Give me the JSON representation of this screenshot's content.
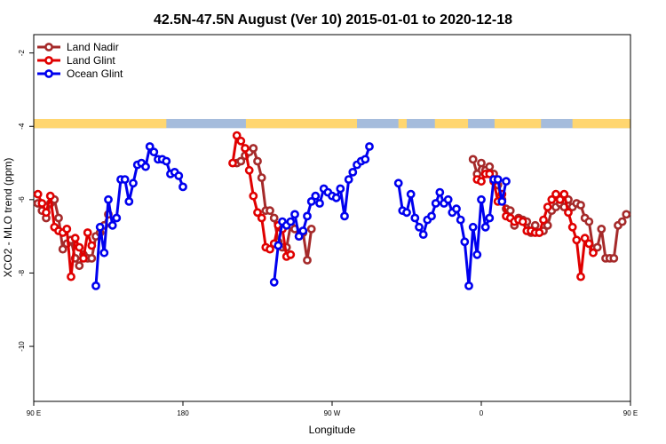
{
  "chart_data": {
    "type": "line",
    "title": "42.5N-47.5N August (Ver 10)   2015-01-01 to 2020-12-18",
    "xlabel": "Longitude",
    "ylabel": "XCO2 - MLO trend (ppm)",
    "xlim": [
      0,
      360
    ],
    "ylim": [
      -11.5,
      -1.5
    ],
    "x_ticks": [
      {
        "pos": 0,
        "label": "90 E"
      },
      {
        "pos": 90,
        "label": "180"
      },
      {
        "pos": 180,
        "label": "90 W"
      },
      {
        "pos": 270,
        "label": "0"
      },
      {
        "pos": 360,
        "label": "90 E"
      },
      {
        "pos": 450,
        "label": "180"
      }
    ],
    "y_ticks": [
      {
        "value": -2,
        "label": "-2"
      },
      {
        "value": -4,
        "label": "-4"
      },
      {
        "value": -6,
        "label": "-6"
      },
      {
        "value": -8,
        "label": "-8"
      },
      {
        "value": -10,
        "label": "-10"
      }
    ],
    "grid": false,
    "legend_position": "top-left",
    "land_mask_band": {
      "y_range": [
        -4.05,
        -3.8
      ],
      "land_color": "#ffd670",
      "ocean_color": "#a5bcdc",
      "land_segments": [
        [
          0,
          80
        ],
        [
          128,
          195
        ],
        [
          220,
          225
        ],
        [
          242,
          262
        ],
        [
          278,
          306
        ],
        [
          325,
          445
        ],
        [
          470,
          485
        ]
      ]
    },
    "series": [
      {
        "name": "Land Nadir",
        "color": "#a52a2a",
        "segments": [
          [
            [
              2.5,
              -6.1
            ],
            [
              5,
              -6.3
            ],
            [
              7.5,
              -6.5
            ],
            [
              10,
              -6.1
            ],
            [
              12.5,
              -6.0
            ],
            [
              15,
              -6.5
            ],
            [
              17.5,
              -7.35
            ],
            [
              20,
              -7.2
            ],
            [
              22.5,
              -7.1
            ],
            [
              25,
              -7.6
            ],
            [
              27.5,
              -7.8
            ],
            [
              30,
              -7.5
            ],
            [
              32.5,
              -7.6
            ],
            [
              35,
              -7.6
            ],
            [
              37.5,
              -7.0
            ],
            [
              40,
              -6.9
            ],
            [
              42.5,
              -6.7
            ],
            [
              45,
              -6.4
            ]
          ],
          [
            [
              122.5,
              -5.0
            ],
            [
              125,
              -4.95
            ],
            [
              127.5,
              -4.8
            ],
            [
              130,
              -4.7
            ],
            [
              132.5,
              -4.6
            ],
            [
              135,
              -4.95
            ],
            [
              137.5,
              -5.4
            ],
            [
              140,
              -6.3
            ],
            [
              142.5,
              -6.3
            ],
            [
              145,
              -6.5
            ],
            [
              147.5,
              -7.15
            ],
            [
              150,
              -7.3
            ],
            [
              152.5,
              -7.3
            ],
            [
              155,
              -6.7
            ],
            [
              157.5,
              -6.8
            ],
            [
              160,
              -7.0
            ],
            [
              162.5,
              -6.9
            ],
            [
              165,
              -7.65
            ],
            [
              167.5,
              -6.8
            ]
          ],
          [
            [
              265,
              -4.9
            ],
            [
              267.5,
              -5.3
            ],
            [
              270,
              -5.0
            ],
            [
              272.5,
              -5.2
            ],
            [
              275,
              -5.1
            ],
            [
              277.5,
              -5.3
            ],
            [
              280,
              -5.6
            ],
            [
              282.5,
              -6.0
            ],
            [
              285,
              -6.25
            ],
            [
              287.5,
              -6.3
            ],
            [
              290,
              -6.7
            ],
            [
              292.5,
              -6.5
            ],
            [
              295,
              -6.55
            ],
            [
              297.5,
              -6.6
            ],
            [
              300,
              -6.9
            ],
            [
              302.5,
              -6.7
            ],
            [
              305,
              -6.9
            ],
            [
              307.5,
              -6.85
            ],
            [
              310,
              -6.7
            ],
            [
              312.5,
              -6.3
            ],
            [
              315,
              -6.2
            ],
            [
              317.5,
              -6.1
            ],
            [
              320,
              -6.2
            ],
            [
              322.5,
              -6.0
            ],
            [
              325,
              -6.2
            ],
            [
              327.5,
              -6.1
            ],
            [
              330,
              -6.15
            ],
            [
              332.5,
              -6.5
            ],
            [
              335,
              -6.6
            ],
            [
              337.5,
              -7.35
            ],
            [
              340,
              -7.3
            ],
            [
              342.5,
              -6.8
            ],
            [
              345,
              -7.6
            ],
            [
              347.5,
              -7.6
            ],
            [
              350,
              -7.6
            ],
            [
              352.5,
              -6.7
            ],
            [
              355,
              -6.6
            ],
            [
              357.5,
              -6.4
            ]
          ]
        ]
      },
      {
        "name": "Land Glint",
        "color": "#e00000",
        "segments": [
          [
            [
              2.5,
              -5.85
            ],
            [
              5,
              -6.1
            ],
            [
              7.5,
              -6.35
            ],
            [
              10,
              -5.9
            ],
            [
              12.5,
              -6.75
            ],
            [
              15,
              -6.85
            ],
            [
              17.5,
              -6.9
            ],
            [
              20,
              -6.8
            ],
            [
              22.5,
              -8.1
            ],
            [
              25,
              -7.05
            ],
            [
              27.5,
              -7.3
            ],
            [
              30,
              -7.6
            ],
            [
              32.5,
              -6.9
            ],
            [
              35,
              -7.25
            ]
          ],
          [
            [
              120,
              -5.0
            ],
            [
              122.5,
              -4.25
            ],
            [
              125,
              -4.4
            ],
            [
              127.5,
              -4.6
            ],
            [
              130,
              -5.2
            ],
            [
              132.5,
              -5.9
            ],
            [
              135,
              -6.35
            ],
            [
              137.5,
              -6.5
            ],
            [
              140,
              -7.3
            ],
            [
              142.5,
              -7.35
            ],
            [
              145,
              -7.2
            ],
            [
              147.5,
              -6.7
            ],
            [
              150,
              -6.8
            ],
            [
              152.5,
              -7.55
            ],
            [
              155,
              -7.5
            ]
          ],
          [
            [
              267.5,
              -5.45
            ],
            [
              270,
              -5.5
            ],
            [
              272.5,
              -5.3
            ],
            [
              275,
              -5.3
            ],
            [
              277.5,
              -5.5
            ],
            [
              280,
              -6.05
            ],
            [
              282.5,
              -5.85
            ],
            [
              285,
              -6.45
            ],
            [
              287.5,
              -6.5
            ],
            [
              290,
              -6.6
            ],
            [
              292.5,
              -6.55
            ],
            [
              295,
              -6.6
            ],
            [
              297.5,
              -6.85
            ],
            [
              300,
              -6.85
            ],
            [
              302.5,
              -6.9
            ],
            [
              305,
              -6.9
            ],
            [
              307.5,
              -6.55
            ],
            [
              310,
              -6.2
            ],
            [
              312.5,
              -6.0
            ],
            [
              315,
              -5.85
            ],
            [
              317.5,
              -6.0
            ],
            [
              320,
              -5.85
            ],
            [
              322.5,
              -6.35
            ],
            [
              325,
              -6.75
            ],
            [
              327.5,
              -7.1
            ],
            [
              330,
              -8.1
            ],
            [
              332.5,
              -7.05
            ],
            [
              335,
              -7.2
            ],
            [
              337.5,
              -7.45
            ]
          ]
        ]
      },
      {
        "name": "Ocean Glint",
        "color": "#0000ee",
        "segments": [
          [
            [
              37.5,
              -8.35
            ],
            [
              40,
              -6.75
            ],
            [
              42.5,
              -7.45
            ],
            [
              45,
              -6.0
            ],
            [
              47.5,
              -6.7
            ],
            [
              50,
              -6.5
            ],
            [
              52.5,
              -5.45
            ],
            [
              55,
              -5.45
            ],
            [
              57.5,
              -6.05
            ],
            [
              60,
              -5.55
            ],
            [
              62.5,
              -5.05
            ],
            [
              65,
              -5.0
            ],
            [
              67.5,
              -5.1
            ],
            [
              70,
              -4.55
            ],
            [
              72.5,
              -4.7
            ],
            [
              75,
              -4.9
            ],
            [
              77.5,
              -4.9
            ],
            [
              80,
              -4.95
            ],
            [
              82.5,
              -5.3
            ],
            [
              85,
              -5.25
            ],
            [
              87.5,
              -5.35
            ],
            [
              90,
              -5.65
            ]
          ],
          [
            [
              145,
              -8.25
            ],
            [
              147.5,
              -7.25
            ],
            [
              150,
              -6.6
            ],
            [
              152.5,
              -6.7
            ],
            [
              155,
              -6.6
            ],
            [
              157.5,
              -6.4
            ],
            [
              160,
              -7.0
            ],
            [
              162.5,
              -6.85
            ],
            [
              165,
              -6.45
            ],
            [
              167.5,
              -6.05
            ],
            [
              170,
              -5.9
            ],
            [
              172.5,
              -6.1
            ],
            [
              175,
              -5.7
            ],
            [
              177.5,
              -5.8
            ],
            [
              180,
              -5.9
            ],
            [
              182.5,
              -5.95
            ],
            [
              185,
              -5.7
            ],
            [
              187.5,
              -6.45
            ],
            [
              190,
              -5.45
            ],
            [
              192.5,
              -5.25
            ],
            [
              195,
              -5.05
            ],
            [
              197.5,
              -4.95
            ],
            [
              200,
              -4.9
            ],
            [
              202.5,
              -4.55
            ]
          ],
          [
            [
              220,
              -5.55
            ],
            [
              222.5,
              -6.3
            ],
            [
              225,
              -6.35
            ],
            [
              227.5,
              -5.85
            ],
            [
              230,
              -6.5
            ],
            [
              232.5,
              -6.75
            ],
            [
              235,
              -6.95
            ],
            [
              237.5,
              -6.55
            ],
            [
              240,
              -6.45
            ],
            [
              242.5,
              -6.1
            ],
            [
              245,
              -5.8
            ],
            [
              247.5,
              -6.1
            ],
            [
              250,
              -6.0
            ],
            [
              252.5,
              -6.35
            ],
            [
              255,
              -6.25
            ],
            [
              257.5,
              -6.55
            ],
            [
              260,
              -7.15
            ],
            [
              262.5,
              -8.35
            ],
            [
              265,
              -6.75
            ],
            [
              267.5,
              -7.5
            ],
            [
              270,
              -6.0
            ],
            [
              272.5,
              -6.75
            ],
            [
              275,
              -6.5
            ],
            [
              277.5,
              -5.45
            ],
            [
              280,
              -5.45
            ],
            [
              282.5,
              -6.05
            ],
            [
              285,
              -5.5
            ]
          ]
        ]
      }
    ]
  }
}
